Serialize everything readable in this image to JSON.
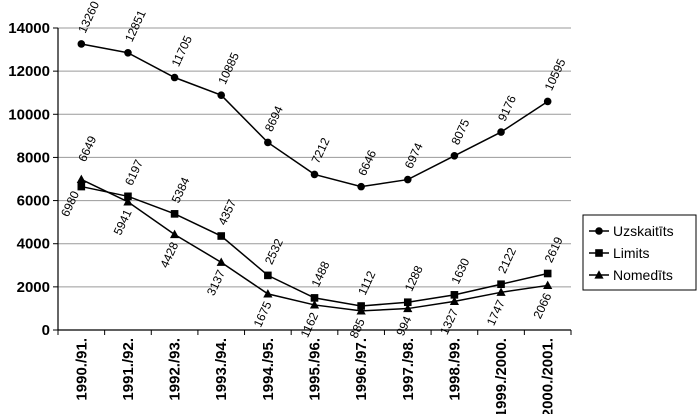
{
  "chart_data": {
    "type": "line",
    "title": "",
    "xlabel": "",
    "ylabel": "",
    "ylim": [
      0,
      14000
    ],
    "yticks": [
      0,
      2000,
      4000,
      6000,
      8000,
      10000,
      12000,
      14000
    ],
    "grid": true,
    "legend_position": "right",
    "categories": [
      "1990./91.",
      "1991./92.",
      "1992./93.",
      "1993./94.",
      "1994./95.",
      "1995./96.",
      "1996./97.",
      "1997./98.",
      "1998./99.",
      "1999./2000.",
      "2000./2001."
    ],
    "series": [
      {
        "name": "Uzskaitīts",
        "marker": "circle",
        "values": [
          13260,
          12851,
          11705,
          10885,
          8694,
          7212,
          6646,
          6974,
          8075,
          9176,
          10595
        ]
      },
      {
        "name": "Limits",
        "marker": "square",
        "values": [
          6649,
          6197,
          5384,
          4357,
          2532,
          1488,
          1112,
          1288,
          1630,
          2122,
          2619
        ]
      },
      {
        "name": "Nomedīts",
        "marker": "triangle",
        "values": [
          6980,
          5941,
          4428,
          3137,
          1675,
          1162,
          885,
          994,
          1327,
          1747,
          2066
        ]
      }
    ]
  }
}
